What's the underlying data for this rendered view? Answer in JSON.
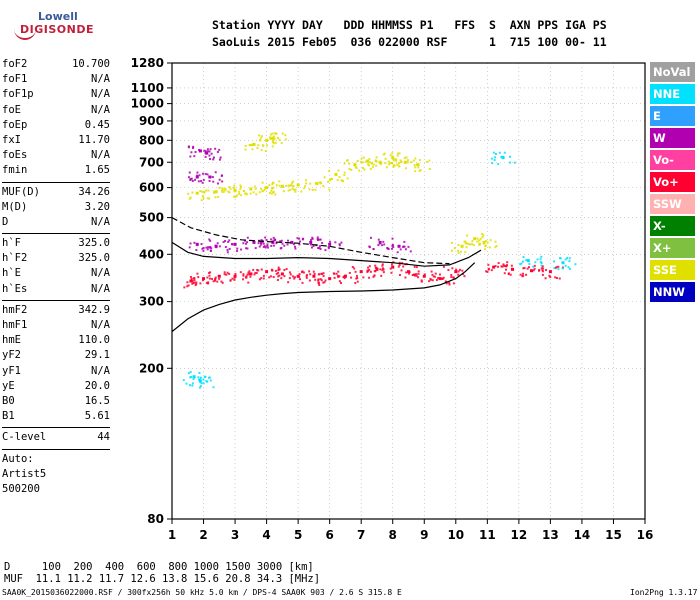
{
  "logo": {
    "brand_top": "Lowell",
    "brand_bottom": "DIGISONDE"
  },
  "header": {
    "line1": "Station YYYY DAY   DDD HHMMSS P1   FFS  S  AXN PPS IGA PS",
    "line2": "SaoLuis 2015 Feb05  036 022000 RSF      1  715 100 00- 11"
  },
  "params": {
    "group1": [
      {
        "k": "foF2",
        "v": "10.700"
      },
      {
        "k": "foF1",
        "v": "N/A"
      },
      {
        "k": "foF1p",
        "v": "N/A"
      },
      {
        "k": "foE",
        "v": "N/A"
      },
      {
        "k": "foEp",
        "v": "0.45"
      },
      {
        "k": "fxI",
        "v": "11.70"
      },
      {
        "k": "foEs",
        "v": "N/A"
      },
      {
        "k": "fmin",
        "v": "1.65"
      }
    ],
    "group2": [
      {
        "k": "MUF(D)",
        "v": "34.26"
      },
      {
        "k": "M(D)",
        "v": "3.20"
      },
      {
        "k": "D",
        "v": "N/A"
      }
    ],
    "group3": [
      {
        "k": "h`F",
        "v": "325.0"
      },
      {
        "k": "h`F2",
        "v": "325.0"
      },
      {
        "k": "h`E",
        "v": "N/A"
      },
      {
        "k": "h`Es",
        "v": "N/A"
      }
    ],
    "group4": [
      {
        "k": "hmF2",
        "v": "342.9"
      },
      {
        "k": "hmF1",
        "v": "N/A"
      },
      {
        "k": "hmE",
        "v": "110.0"
      },
      {
        "k": "yF2",
        "v": "29.1"
      },
      {
        "k": "yF1",
        "v": "N/A"
      },
      {
        "k": "yE",
        "v": "20.0"
      },
      {
        "k": "B0",
        "v": "16.5"
      },
      {
        "k": "B1",
        "v": "5.61"
      }
    ],
    "clevel": {
      "k": "C-level",
      "v": "44"
    },
    "auto": [
      "Auto:",
      "Artist5",
      "500200"
    ]
  },
  "legend": [
    {
      "label": "NoVal",
      "color": "#a0a0a0"
    },
    {
      "label": "NNE",
      "color": "#00e0ff"
    },
    {
      "label": "E",
      "color": "#30a0ff"
    },
    {
      "label": "W",
      "color": "#b000b0"
    },
    {
      "label": "Vo-",
      "color": "#ff40a0"
    },
    {
      "label": "Vo+",
      "color": "#ff0030"
    },
    {
      "label": "SSW",
      "color": "#ffb0b0"
    },
    {
      "label": "X-",
      "color": "#008000"
    },
    {
      "label": "X+",
      "color": "#80c040"
    },
    {
      "label": "SSE",
      "color": "#e0e000"
    },
    {
      "label": "NNW",
      "color": "#0000c0"
    }
  ],
  "footer": {
    "d_row": "D     100  200  400  600  800 1000 1500 3000 [km]",
    "muf_row": "MUF  11.1 11.2 11.7 12.6 13.8 15.6 20.8 34.3 [MHz]",
    "file": "SAA0K_2015036022000.RSF / 300fx256h 50 kHz 5.0 km / DPS-4 SAA0K 903 / 2.6 S 315.8 E",
    "version": "Ion2Png 1.3.17"
  },
  "chart_data": {
    "type": "scatter",
    "title": "",
    "xlabel": "",
    "ylabel": "",
    "xlim": [
      1,
      16
    ],
    "ylim": [
      80,
      1280
    ],
    "x_ticks": [
      1,
      2,
      3,
      4,
      5,
      6,
      7,
      8,
      9,
      10,
      11,
      12,
      13,
      14,
      15,
      16
    ],
    "y_ticks": [
      80,
      200,
      300,
      400,
      500,
      600,
      700,
      800,
      900,
      1000,
      1100,
      1280
    ],
    "grid": true,
    "note_scale": "logarithmic height axis",
    "traces": [
      {
        "name": "SSE",
        "color": "#e0e000",
        "points": [
          [
            1.8,
            580
          ],
          [
            2.4,
            585
          ],
          [
            3.0,
            590
          ],
          [
            3.5,
            595
          ],
          [
            4.0,
            600
          ],
          [
            4.5,
            605
          ],
          [
            5.0,
            610
          ],
          [
            5.6,
            615
          ],
          [
            6.2,
            650
          ],
          [
            6.8,
            690
          ],
          [
            7.2,
            705
          ],
          [
            7.6,
            700
          ],
          [
            8.0,
            720
          ],
          [
            8.4,
            700
          ],
          [
            8.8,
            690
          ],
          [
            3.6,
            780
          ],
          [
            4.0,
            800
          ],
          [
            4.2,
            810
          ],
          [
            10.2,
            420
          ],
          [
            10.6,
            440
          ],
          [
            10.9,
            430
          ]
        ]
      },
      {
        "name": "W",
        "color": "#b000b0",
        "points": [
          [
            1.8,
            425
          ],
          [
            2.4,
            420
          ],
          [
            3.0,
            425
          ],
          [
            3.6,
            430
          ],
          [
            4.2,
            430
          ],
          [
            4.8,
            430
          ],
          [
            5.4,
            430
          ],
          [
            6.0,
            425
          ],
          [
            1.8,
            640
          ],
          [
            2.2,
            640
          ],
          [
            1.9,
            750
          ],
          [
            2.1,
            740
          ],
          [
            7.6,
            430
          ],
          [
            8.2,
            420
          ]
        ]
      },
      {
        "name": "Vo+",
        "color": "#ff0030",
        "points": [
          [
            1.6,
            340
          ],
          [
            2.0,
            345
          ],
          [
            2.5,
            350
          ],
          [
            3.0,
            350
          ],
          [
            3.5,
            355
          ],
          [
            4.0,
            360
          ],
          [
            4.5,
            355
          ],
          [
            5.0,
            350
          ],
          [
            5.5,
            350
          ],
          [
            6.0,
            345
          ],
          [
            6.5,
            350
          ],
          [
            7.0,
            360
          ],
          [
            7.5,
            365
          ],
          [
            8.0,
            370
          ],
          [
            8.5,
            360
          ],
          [
            9.0,
            350
          ],
          [
            9.5,
            345
          ],
          [
            10.0,
            360
          ],
          [
            11.2,
            370
          ],
          [
            11.8,
            365
          ],
          [
            12.4,
            362
          ],
          [
            13.0,
            360
          ]
        ]
      },
      {
        "name": "NNE",
        "color": "#00e0ff",
        "points": [
          [
            1.7,
            190
          ],
          [
            1.9,
            185
          ],
          [
            11.5,
            720
          ],
          [
            12.3,
            385
          ],
          [
            13.4,
            380
          ]
        ]
      }
    ],
    "lines": [
      {
        "name": "profile",
        "points": [
          [
            1.0,
            250
          ],
          [
            1.5,
            270
          ],
          [
            2.0,
            285
          ],
          [
            2.5,
            295
          ],
          [
            3.0,
            303
          ],
          [
            3.5,
            308
          ],
          [
            4.0,
            312
          ],
          [
            4.5,
            315
          ],
          [
            5.0,
            317
          ],
          [
            6.0,
            319
          ],
          [
            7.0,
            320
          ],
          [
            8.0,
            322
          ],
          [
            9.0,
            326
          ],
          [
            9.5,
            332
          ],
          [
            10.0,
            345
          ],
          [
            10.3,
            360
          ],
          [
            10.6,
            380
          ]
        ]
      },
      {
        "name": "upper",
        "points": [
          [
            1.0,
            430
          ],
          [
            1.5,
            405
          ],
          [
            2.0,
            395
          ],
          [
            3.0,
            390
          ],
          [
            4.0,
            390
          ],
          [
            5.0,
            392
          ],
          [
            6.0,
            390
          ],
          [
            7.0,
            385
          ],
          [
            8.0,
            380
          ],
          [
            9.0,
            372
          ],
          [
            9.8,
            375
          ],
          [
            10.4,
            392
          ],
          [
            10.8,
            410
          ]
        ]
      },
      {
        "name": "dashed",
        "dash": true,
        "points": [
          [
            1.0,
            500
          ],
          [
            1.6,
            470
          ],
          [
            2.4,
            450
          ],
          [
            3.2,
            437
          ],
          [
            4.0,
            432
          ],
          [
            5.0,
            428
          ],
          [
            6.0,
            420
          ],
          [
            7.0,
            405
          ],
          [
            8.0,
            392
          ],
          [
            9.0,
            380
          ],
          [
            9.8,
            378
          ]
        ]
      }
    ]
  }
}
